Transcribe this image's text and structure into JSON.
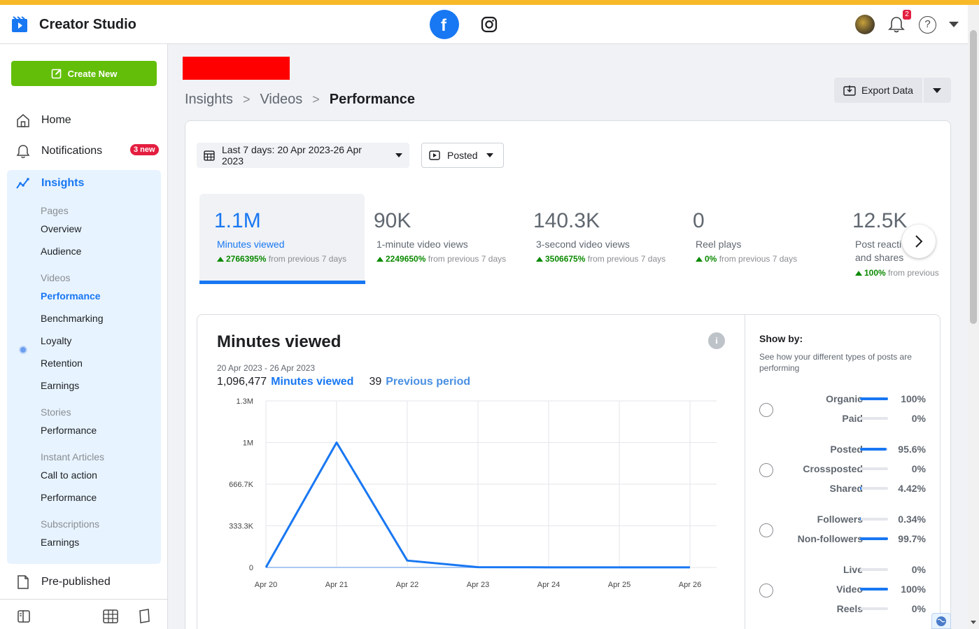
{
  "app": {
    "title": "Creator Studio"
  },
  "header": {
    "notification_count": "2",
    "help_label": "?"
  },
  "sidebar": {
    "create_label": "Create New",
    "home": "Home",
    "notifications": "Notifications",
    "notifications_badge": "3 new",
    "insights": "Insights",
    "pages_head": "Pages",
    "overview": "Overview",
    "audience": "Audience",
    "videos_head": "Videos",
    "performance": "Performance",
    "benchmarking": "Benchmarking",
    "loyalty": "Loyalty",
    "retention": "Retention",
    "earnings": "Earnings",
    "stories_head": "Stories",
    "stories_performance": "Performance",
    "ia_head": "Instant Articles",
    "call_to_action": "Call to action",
    "ia_performance": "Performance",
    "subs_head": "Subscriptions",
    "subs_earnings": "Earnings",
    "prepublished": "Pre-published"
  },
  "breadcrumb": {
    "level1": "Insights",
    "level2": "Videos",
    "current": "Performance",
    "separator": ">"
  },
  "export": {
    "label": "Export Data"
  },
  "filters": {
    "date": "Last 7 days: 20 Apr 2023-26 Apr 2023",
    "type": "Posted"
  },
  "metrics": [
    {
      "value": "1.1M",
      "label": "Minutes viewed",
      "change": "2766395%",
      "suffix": "from previous 7 days"
    },
    {
      "value": "90K",
      "label": "1-minute video views",
      "change": "2249650%",
      "suffix": "from previous 7 days"
    },
    {
      "value": "140.3K",
      "label": "3-second video views",
      "change": "3506675%",
      "suffix": "from previous 7 days"
    },
    {
      "value": "0",
      "label": "Reel plays",
      "change": "0%",
      "suffix": "from previous 7 days"
    },
    {
      "value": "12.5K",
      "label": "Post reacti",
      "label2": "and shares",
      "change": "100%",
      "suffix": "from previous"
    }
  ],
  "chart_section": {
    "title": "Minutes viewed",
    "range": "20 Apr 2023 - 26 Apr 2023",
    "current_value": "1,096,477",
    "current_label": "Minutes viewed",
    "previous_value": "39",
    "previous_label": "Previous period"
  },
  "chart_data": {
    "type": "line",
    "categories": [
      "Apr 20",
      "Apr 21",
      "Apr 22",
      "Apr 23",
      "Apr 24",
      "Apr 25",
      "Apr 26"
    ],
    "series": [
      {
        "name": "Minutes viewed",
        "values": [
          0,
          1000000,
          55000,
          2000,
          1000,
          1000,
          1000
        ],
        "color": "#1877f2"
      },
      {
        "name": "Previous period",
        "values": [
          0,
          0,
          0,
          0,
          0,
          0,
          0
        ],
        "color": "#a9c8f5"
      }
    ],
    "y_ticks": [
      "0",
      "333.3K",
      "666.7K",
      "1M",
      "1.3M"
    ],
    "ylim": [
      0,
      1333333
    ],
    "grid": true
  },
  "showby": {
    "title": "Show by:",
    "desc": "See how your different types of posts are performing",
    "groups": [
      [
        {
          "name": "Organic",
          "pct": "100%",
          "value": 100
        },
        {
          "name": "Paid",
          "pct": "0%",
          "value": 0
        }
      ],
      [
        {
          "name": "Posted",
          "pct": "95.6%",
          "value": 95.6
        },
        {
          "name": "Crossposted",
          "pct": "0%",
          "value": 0
        },
        {
          "name": "Shared",
          "pct": "4.42%",
          "value": 4.42
        }
      ],
      [
        {
          "name": "Followers",
          "pct": "0.34%",
          "value": 0.34
        },
        {
          "name": "Non-followers",
          "pct": "99.7%",
          "value": 99.7
        }
      ],
      [
        {
          "name": "Live",
          "pct": "0%",
          "value": 0
        },
        {
          "name": "Video",
          "pct": "100%",
          "value": 100
        },
        {
          "name": "Reels",
          "pct": "0%",
          "value": 0
        }
      ]
    ]
  },
  "colors": {
    "accent": "#1877f2",
    "create": "#63be09",
    "topstrip": "#f7b928",
    "badge": "#e41e3f"
  }
}
